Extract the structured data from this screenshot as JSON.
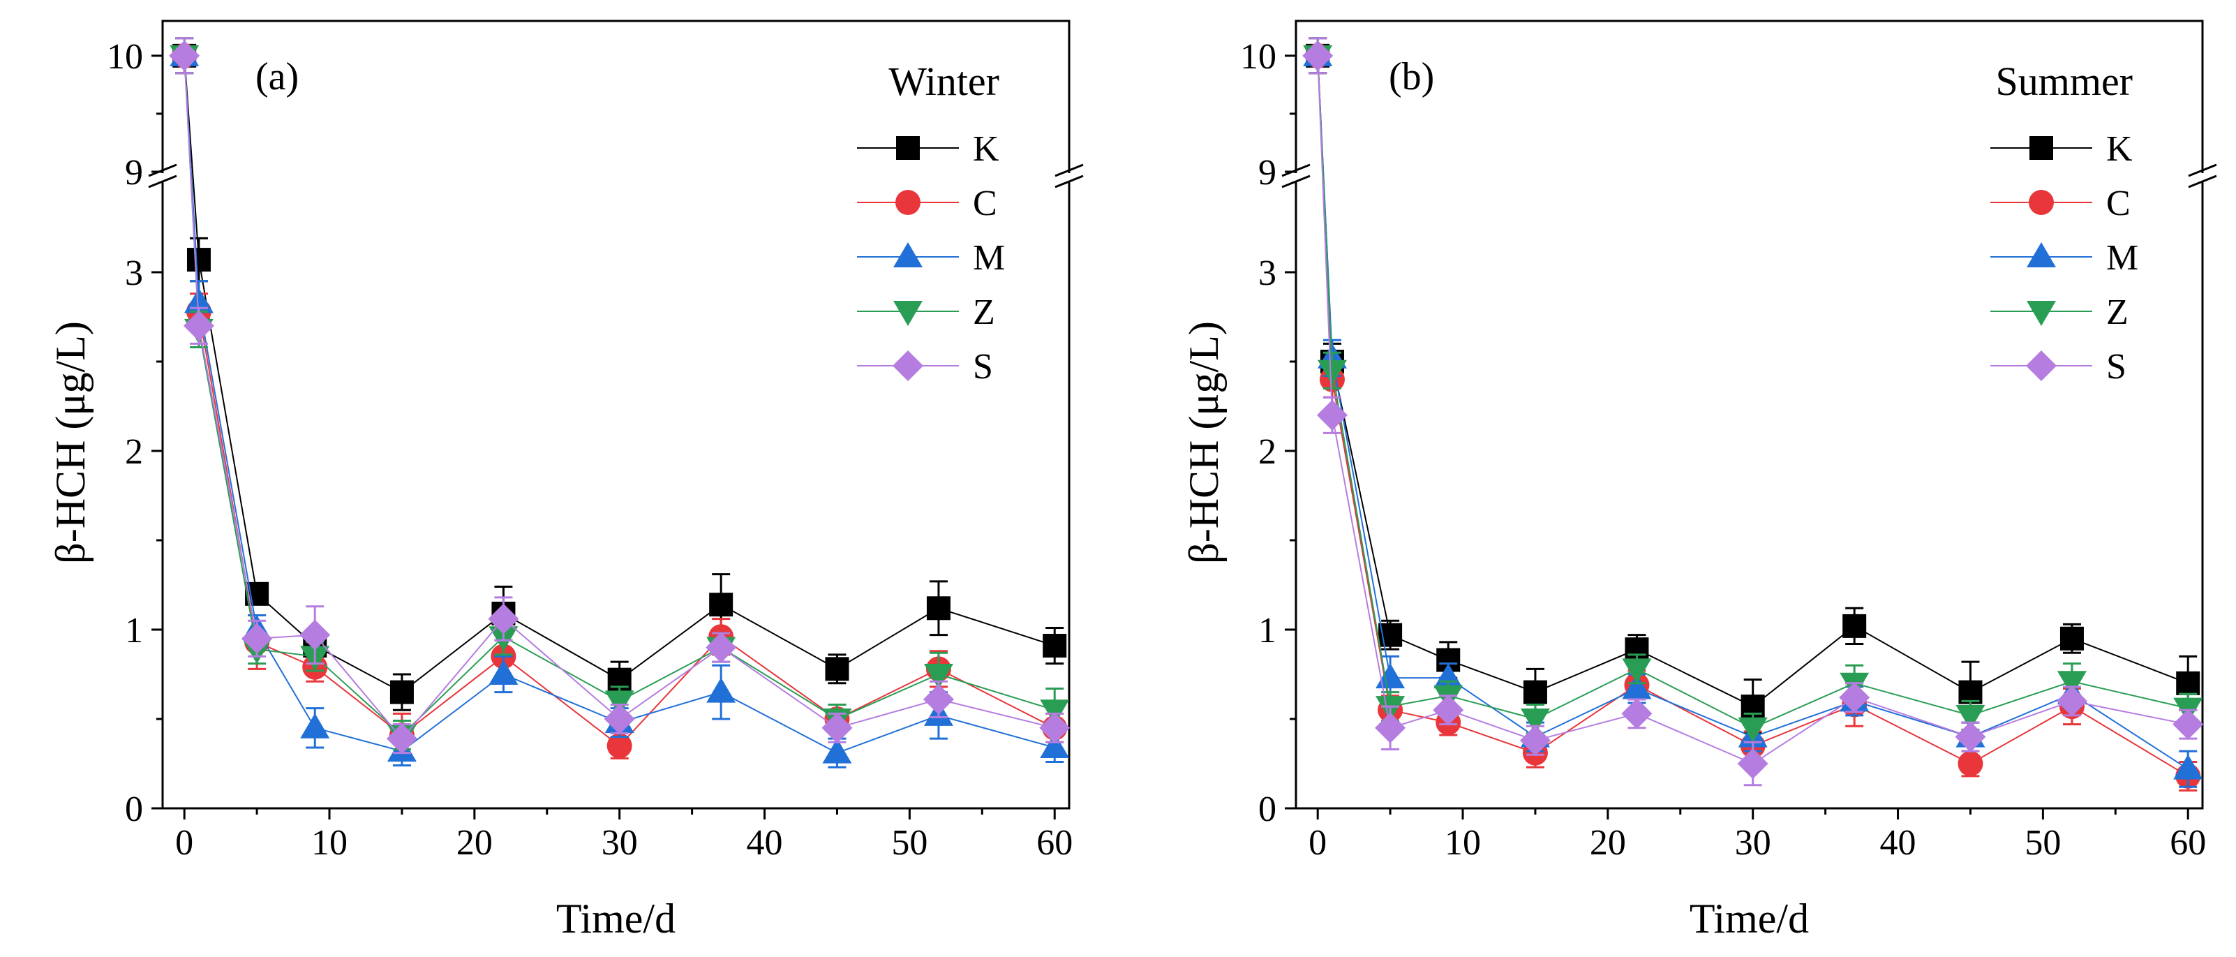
{
  "figure": {
    "panels": [
      {
        "id": "a",
        "panel_label": "(a)",
        "season": "Winter",
        "ylabel": "β-HCH (μg/L)",
        "xlabel": "Time/d"
      },
      {
        "id": "b",
        "panel_label": "(b)",
        "season": "Summer",
        "ylabel": "β-HCH (μg/L)",
        "xlabel": "Time/d"
      }
    ]
  },
  "chart_data": [
    {
      "type": "line",
      "title": "Winter",
      "panel_label": "(a)",
      "xlabel": "Time/d",
      "ylabel": "β-HCH (μg/L)",
      "xlim": [
        -1.5,
        61
      ],
      "x_ticks": [
        0,
        10,
        20,
        30,
        40,
        50,
        60
      ],
      "y_lower_range": [
        0,
        3.5
      ],
      "y_lower_ticks": [
        0,
        1,
        2,
        3
      ],
      "y_upper_range": [
        9,
        10.3
      ],
      "y_upper_ticks": [
        9,
        10
      ],
      "axis_break": "between 3.5 and 9",
      "x": [
        0,
        1,
        5,
        9,
        15,
        22,
        30,
        37,
        45,
        52,
        60
      ],
      "legend_position": "top-right",
      "series": [
        {
          "name": "K",
          "marker": "square",
          "color": "#000000",
          "values": [
            10.0,
            3.07,
            1.2,
            0.91,
            0.65,
            1.09,
            0.72,
            1.14,
            0.78,
            1.12,
            0.91
          ],
          "errors": [
            0.15,
            0.12,
            0.06,
            0.06,
            0.1,
            0.15,
            0.1,
            0.17,
            0.08,
            0.15,
            0.1
          ]
        },
        {
          "name": "C",
          "marker": "circle",
          "color": "#e8363a",
          "values": [
            10.0,
            2.78,
            0.93,
            0.79,
            0.41,
            0.85,
            0.35,
            0.96,
            0.5,
            0.78,
            0.45
          ],
          "errors": [
            0.15,
            0.1,
            0.15,
            0.08,
            0.12,
            0.12,
            0.07,
            0.1,
            0.08,
            0.1,
            0.08
          ]
        },
        {
          "name": "M",
          "marker": "triangle-up",
          "color": "#2170d8",
          "values": [
            10.0,
            2.83,
            1.0,
            0.45,
            0.32,
            0.75,
            0.48,
            0.65,
            0.31,
            0.52,
            0.34
          ],
          "errors": [
            0.15,
            0.12,
            0.08,
            0.11,
            0.08,
            0.1,
            0.08,
            0.15,
            0.08,
            0.13,
            0.08
          ]
        },
        {
          "name": "Z",
          "marker": "triangle-down",
          "color": "#2a9d55",
          "values": [
            10.0,
            2.68,
            0.89,
            0.85,
            0.41,
            0.96,
            0.6,
            0.9,
            0.5,
            0.75,
            0.55
          ],
          "errors": [
            0.15,
            0.1,
            0.08,
            0.08,
            0.08,
            0.1,
            0.08,
            0.08,
            0.08,
            0.12,
            0.12
          ]
        },
        {
          "name": "S",
          "marker": "diamond",
          "color": "#b57de0",
          "values": [
            10.0,
            2.7,
            0.95,
            0.97,
            0.39,
            1.06,
            0.5,
            0.9,
            0.45,
            0.61,
            0.45
          ],
          "errors": [
            0.15,
            0.1,
            0.1,
            0.16,
            0.08,
            0.12,
            0.08,
            0.08,
            0.08,
            0.1,
            0.08
          ]
        }
      ]
    },
    {
      "type": "line",
      "title": "Summer",
      "panel_label": "(b)",
      "xlabel": "Time/d",
      "ylabel": "β-HCH (μg/L)",
      "xlim": [
        -1.5,
        61
      ],
      "x_ticks": [
        0,
        10,
        20,
        30,
        40,
        50,
        60
      ],
      "y_lower_range": [
        0,
        3.5
      ],
      "y_lower_ticks": [
        0,
        1,
        2,
        3
      ],
      "y_upper_range": [
        9,
        10.3
      ],
      "y_upper_ticks": [
        9,
        10
      ],
      "axis_break": "between 3.5 and 9",
      "x": [
        0,
        1,
        5,
        9,
        15,
        22,
        30,
        37,
        45,
        52,
        60
      ],
      "legend_position": "top-right",
      "series": [
        {
          "name": "K",
          "marker": "square",
          "color": "#000000",
          "values": [
            10.0,
            2.5,
            0.97,
            0.83,
            0.65,
            0.89,
            0.57,
            1.02,
            0.65,
            0.95,
            0.7
          ],
          "errors": [
            0.15,
            0.1,
            0.08,
            0.1,
            0.13,
            0.08,
            0.15,
            0.1,
            0.17,
            0.08,
            0.15
          ]
        },
        {
          "name": "C",
          "marker": "circle",
          "color": "#e8363a",
          "values": [
            10.0,
            2.4,
            0.55,
            0.48,
            0.31,
            0.69,
            0.35,
            0.58,
            0.25,
            0.57,
            0.18
          ],
          "errors": [
            0.15,
            0.1,
            0.08,
            0.07,
            0.08,
            0.08,
            0.08,
            0.12,
            0.07,
            0.1,
            0.08
          ]
        },
        {
          "name": "M",
          "marker": "triangle-up",
          "color": "#2170d8",
          "values": [
            10.0,
            2.52,
            0.73,
            0.73,
            0.4,
            0.67,
            0.4,
            0.6,
            0.4,
            0.64,
            0.22
          ],
          "errors": [
            0.15,
            0.1,
            0.12,
            0.08,
            0.08,
            0.08,
            0.08,
            0.08,
            0.08,
            0.08,
            0.1
          ]
        },
        {
          "name": "Z",
          "marker": "triangle-down",
          "color": "#2a9d55",
          "values": [
            10.0,
            2.45,
            0.57,
            0.63,
            0.5,
            0.78,
            0.45,
            0.7,
            0.52,
            0.71,
            0.56
          ],
          "errors": [
            0.15,
            0.1,
            0.08,
            0.08,
            0.08,
            0.08,
            0.08,
            0.1,
            0.08,
            0.1,
            0.08
          ]
        },
        {
          "name": "S",
          "marker": "diamond",
          "color": "#b57de0",
          "values": [
            10.0,
            2.2,
            0.45,
            0.55,
            0.38,
            0.53,
            0.25,
            0.62,
            0.4,
            0.6,
            0.47
          ],
          "errors": [
            0.15,
            0.1,
            0.12,
            0.08,
            0.08,
            0.08,
            0.12,
            0.08,
            0.08,
            0.08,
            0.08
          ]
        }
      ]
    }
  ]
}
